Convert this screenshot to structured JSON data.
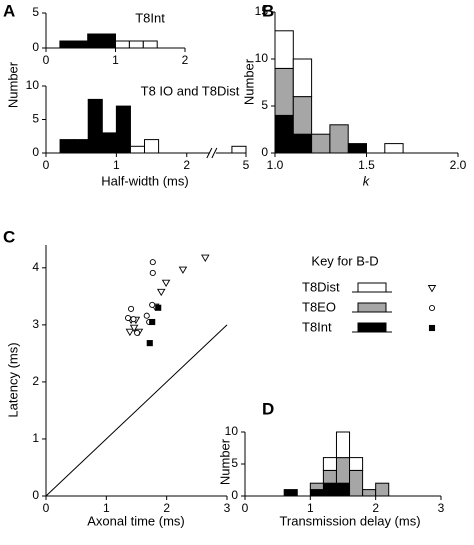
{
  "chart_data": [
    {
      "panel": "A",
      "type": "histogram",
      "title": "T8Int",
      "ylabel": "Number",
      "bins": [
        0.2,
        0.4,
        0.6,
        0.8,
        1.0,
        1.2,
        1.4,
        1.6
      ],
      "series": [
        {
          "color": "#000000",
          "values": [
            1,
            1,
            2,
            2,
            0,
            0,
            0
          ]
        },
        {
          "color": "#ffffff",
          "values": [
            0,
            0,
            0,
            0,
            1,
            1,
            1
          ]
        }
      ],
      "xlim": [
        0,
        2
      ],
      "xticks": [
        0,
        1,
        2
      ],
      "ylim": [
        0,
        5
      ],
      "yticks": [
        0,
        5
      ]
    },
    {
      "type": "histogram",
      "title": "T8 IO and T8Dist",
      "xlabel": "Half-width (ms)",
      "bins": [
        0.2,
        0.4,
        0.6,
        0.8,
        1.0,
        1.2,
        1.4,
        1.6,
        4.8,
        5.0
      ],
      "series": [
        {
          "color": "#000000",
          "values": [
            2,
            2,
            8,
            3,
            7,
            0,
            0,
            0,
            0
          ]
        },
        {
          "color": "#ffffff",
          "values": [
            0,
            0,
            0,
            0,
            0,
            1,
            2,
            0,
            1
          ]
        }
      ],
      "xlim": [
        0,
        5
      ],
      "xticks": [
        0,
        1,
        2,
        5
      ],
      "axis_break": [
        2.3,
        4.6
      ],
      "ylim": [
        0,
        10
      ],
      "yticks": [
        0,
        5,
        10
      ]
    },
    {
      "panel": "B",
      "type": "histogram",
      "ylabel": "Number",
      "xlabel": "k",
      "bins": [
        1.0,
        1.1,
        1.2,
        1.3,
        1.4,
        1.5,
        1.6,
        1.7
      ],
      "series": [
        {
          "color": "#000000",
          "values": [
            4,
            2,
            0,
            0,
            1,
            0,
            0
          ]
        },
        {
          "color": "#a6a6a6",
          "values": [
            5,
            4,
            2,
            3,
            0,
            0,
            0
          ]
        },
        {
          "color": "#ffffff",
          "values": [
            4,
            4,
            0,
            0,
            0,
            0,
            1
          ]
        }
      ],
      "xlim": [
        1,
        2
      ],
      "xticks": [
        {
          "value": 1,
          "label": "1.0"
        },
        {
          "value": 1.5,
          "label": "1.5"
        },
        {
          "value": 2,
          "label": "2.0"
        }
      ],
      "ylim": [
        0,
        15
      ],
      "yticks": [
        0,
        5,
        10,
        15
      ]
    },
    {
      "panel": "C",
      "type": "scatter",
      "xlabel": "Axonal time (ms)",
      "ylabel": "Latency (ms)",
      "legend_title": "Key for B-D",
      "series": [
        {
          "name": "T8Dist",
          "color": "#ffffff",
          "marker": "triangle",
          "x": [
            2.64,
            2.27,
            1.99,
            1.91,
            1.81,
            1.41,
            1.49,
            1.39,
            1.54,
            1.46
          ],
          "values": [
            4.18,
            3.97,
            3.74,
            3.58,
            3.32,
            3.09,
            3.09,
            2.88,
            2.88,
            2.95
          ]
        },
        {
          "name": "T8EO",
          "color": "#a6a6a6",
          "marker": "circle",
          "x": [
            1.77,
            1.77,
            1.41,
            1.36,
            1.76,
            1.67,
            1.71,
            1.51,
            1.45
          ],
          "values": [
            4.1,
            3.91,
            3.28,
            3.12,
            3.35,
            3.16,
            3.05,
            2.86,
            3.1
          ]
        },
        {
          "name": "T8Int",
          "color": "#000000",
          "marker": "square",
          "x": [
            1.86,
            1.76,
            1.72
          ],
          "values": [
            3.3,
            3.05,
            2.68
          ]
        }
      ],
      "line": {
        "x": [
          0,
          3
        ],
        "y": [
          0,
          3
        ]
      },
      "xlim": [
        0,
        3
      ],
      "xticks": [
        0,
        1,
        2,
        3
      ],
      "ylim": [
        0,
        4.4
      ],
      "yticks": [
        0,
        1,
        2,
        3,
        4
      ]
    },
    {
      "panel": "D",
      "type": "histogram",
      "ylabel": "Number",
      "xlabel": "Transmission delay (ms)",
      "bins": [
        0.6,
        0.8,
        1.0,
        1.2,
        1.4,
        1.6,
        1.8,
        2.0,
        2.2
      ],
      "series": [
        {
          "color": "#000000",
          "values": [
            1,
            0,
            1,
            2,
            2,
            0,
            0,
            0
          ]
        },
        {
          "color": "#a6a6a6",
          "values": [
            0,
            0,
            1,
            2,
            4,
            4,
            1,
            2
          ]
        },
        {
          "color": "#ffffff",
          "values": [
            0,
            0,
            0,
            2,
            4,
            2,
            0,
            0
          ]
        }
      ],
      "xlim": [
        0,
        3
      ],
      "xticks": [
        0,
        1,
        2,
        3
      ],
      "ylim": [
        0,
        10
      ],
      "yticks": [
        0,
        5,
        10
      ]
    }
  ]
}
